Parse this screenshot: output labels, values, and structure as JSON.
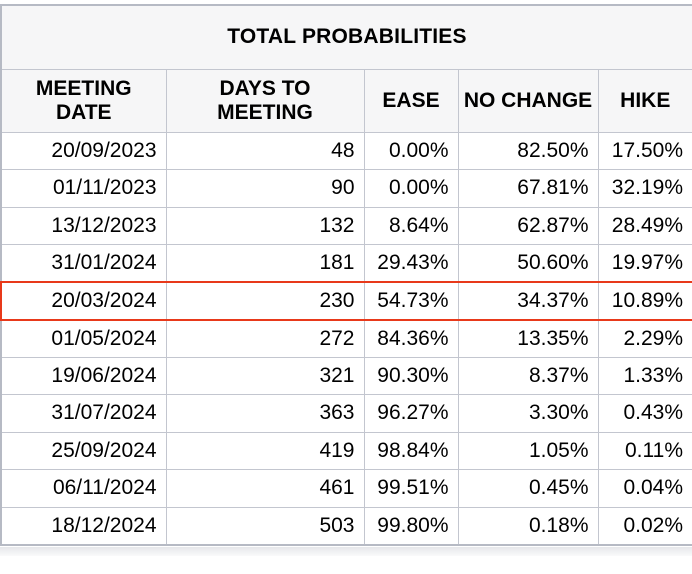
{
  "title": "TOTAL PROBABILITIES",
  "table": {
    "columns": [
      "MEETING DATE",
      "DAYS TO MEETING",
      "EASE",
      "NO CHANGE",
      "HIKE"
    ],
    "rows": [
      [
        "20/09/2023",
        "48",
        "0.00%",
        "82.50%",
        "17.50%"
      ],
      [
        "01/11/2023",
        "90",
        "0.00%",
        "67.81%",
        "32.19%"
      ],
      [
        "13/12/2023",
        "132",
        "8.64%",
        "62.87%",
        "28.49%"
      ],
      [
        "31/01/2024",
        "181",
        "29.43%",
        "50.60%",
        "19.97%"
      ],
      [
        "20/03/2024",
        "230",
        "54.73%",
        "34.37%",
        "10.89%"
      ],
      [
        "01/05/2024",
        "272",
        "84.36%",
        "13.35%",
        "2.29%"
      ],
      [
        "19/06/2024",
        "321",
        "90.30%",
        "8.37%",
        "1.33%"
      ],
      [
        "31/07/2024",
        "363",
        "96.27%",
        "3.30%",
        "0.43%"
      ],
      [
        "25/09/2024",
        "419",
        "98.84%",
        "1.05%",
        "0.11%"
      ],
      [
        "06/11/2024",
        "461",
        "99.51%",
        "0.45%",
        "0.04%"
      ],
      [
        "18/12/2024",
        "503",
        "99.80%",
        "0.18%",
        "0.02%"
      ]
    ],
    "highlighted_row_index": 4,
    "highlighted_meeting_date": "20/03/2024"
  },
  "colors": {
    "highlight_border": "#e8391a",
    "inner_border": "#c3c6cf",
    "outer_border": "#b6bac4",
    "header_background": "#f6f6f7",
    "cell_background": "#ffffff",
    "text": "#000000"
  }
}
